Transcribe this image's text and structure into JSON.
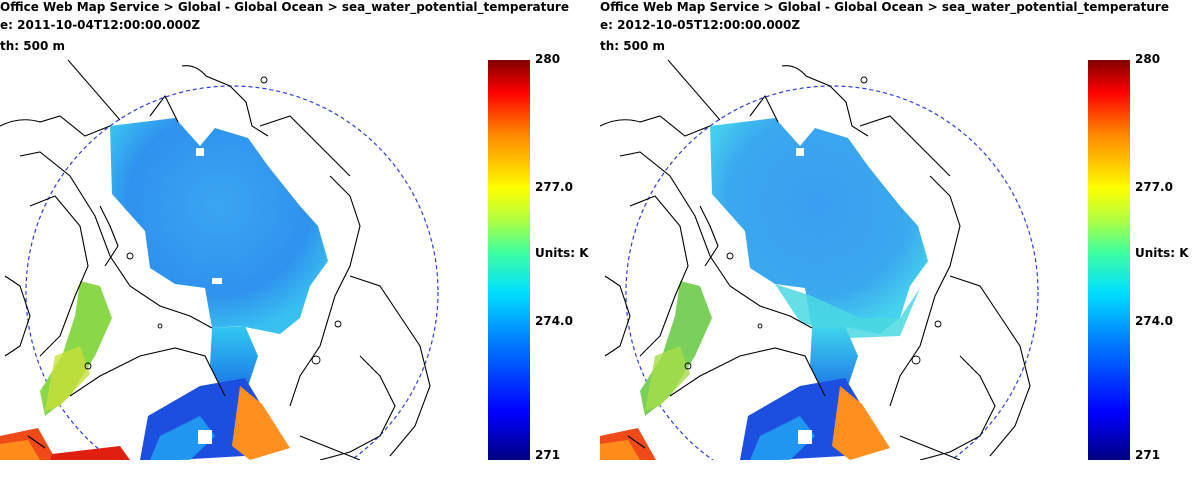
{
  "panels": [
    {
      "breadcrumb": "Office Web Map Service > Global - Global Ocean > sea_water_potential_temperature",
      "time_line": "e: 2011-10-04T12:00:00.000Z",
      "depth_line": "th: 500 m",
      "colorbar": {
        "max": "280",
        "upper_mid": "277.0",
        "units": "Units: K",
        "lower_mid": "274.0",
        "min": "271"
      }
    },
    {
      "breadcrumb": "Office Web Map Service > Global - Global Ocean > sea_water_potential_temperature",
      "time_line": "e: 2012-10-05T12:00:00.000Z",
      "depth_line": "th: 500 m",
      "colorbar": {
        "max": "280",
        "upper_mid": "277.0",
        "units": "Units: K",
        "lower_mid": "274.0",
        "min": "271"
      }
    }
  ],
  "colors": {
    "ocean_blue": "#2e9bf0",
    "cyan": "#33d6ff",
    "deep_blue": "#0a3fd6",
    "warm_orange": "#ff8c1a",
    "hot_red": "#e8280f",
    "coast_line": "#000000",
    "circle_dash": "#2b3de0"
  }
}
